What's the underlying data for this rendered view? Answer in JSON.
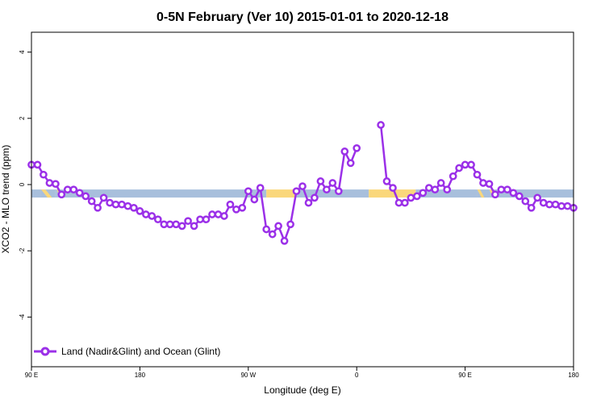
{
  "chart_data": {
    "type": "line",
    "title": "0-5N February (Ver 10)   2015-01-01 to 2020-12-18",
    "xlabel": "Longitude (deg E)",
    "ylabel": "XCO2 - MLO trend (ppm)",
    "xlim": [
      90,
      540
    ],
    "ylim": [
      -5.5,
      4.6
    ],
    "xticks": [
      {
        "value": 90,
        "label": "90 E"
      },
      {
        "value": 180,
        "label": "180"
      },
      {
        "value": 270,
        "label": "90 W"
      },
      {
        "value": 360,
        "label": "0"
      },
      {
        "value": 450,
        "label": "90 E"
      },
      {
        "value": 540,
        "label": "180"
      }
    ],
    "yticks": [
      {
        "value": 4,
        "label": "4"
      },
      {
        "value": 2,
        "label": "2"
      },
      {
        "value": 0,
        "label": "0"
      },
      {
        "value": -2,
        "label": "-2"
      },
      {
        "value": -4,
        "label": "-4"
      }
    ],
    "grid": false,
    "legend_position": "bottom-left",
    "surface_bar": {
      "y": -0.27,
      "segments": [
        {
          "type": "ocean",
          "start": 90,
          "end": 98
        },
        {
          "type": "mixed",
          "start": 98,
          "end": 110
        },
        {
          "type": "ocean",
          "start": 110,
          "end": 111
        },
        {
          "type": "mixed",
          "start": 111,
          "end": 117
        },
        {
          "type": "ocean",
          "start": 117,
          "end": 285
        },
        {
          "type": "land",
          "start": 285,
          "end": 310
        },
        {
          "type": "ocean",
          "start": 310,
          "end": 370
        },
        {
          "type": "land",
          "start": 370,
          "end": 409
        },
        {
          "type": "ocean",
          "start": 409,
          "end": 460
        },
        {
          "type": "mixed",
          "start": 460,
          "end": 468
        },
        {
          "type": "ocean",
          "start": 468,
          "end": 470
        },
        {
          "type": "mixed",
          "start": 470,
          "end": 477
        },
        {
          "type": "ocean",
          "start": 477,
          "end": 540
        }
      ],
      "colors": {
        "ocean": "#a8bfdc",
        "land": "#fad77b"
      }
    },
    "series": [
      {
        "name": "Land (Nadir&Glint) and Ocean (Glint)",
        "color": "#9b30e8",
        "points": [
          [
            90,
            0.6
          ],
          [
            95,
            0.6
          ],
          [
            100,
            0.3
          ],
          [
            105,
            0.05
          ],
          [
            110,
            0.02
          ],
          [
            115,
            -0.3
          ],
          [
            120,
            -0.15
          ],
          [
            125,
            -0.15
          ],
          [
            130,
            -0.25
          ],
          [
            135,
            -0.35
          ],
          [
            140,
            -0.5
          ],
          [
            145,
            -0.7
          ],
          [
            150,
            -0.4
          ],
          [
            155,
            -0.55
          ],
          [
            160,
            -0.6
          ],
          [
            165,
            -0.6
          ],
          [
            170,
            -0.65
          ],
          [
            175,
            -0.7
          ],
          [
            180,
            -0.8
          ],
          [
            185,
            -0.9
          ],
          [
            190,
            -0.95
          ],
          [
            195,
            -1.05
          ],
          [
            200,
            -1.2
          ],
          [
            205,
            -1.2
          ],
          [
            210,
            -1.2
          ],
          [
            215,
            -1.25
          ],
          [
            220,
            -1.1
          ],
          [
            225,
            -1.25
          ],
          [
            230,
            -1.05
          ],
          [
            235,
            -1.05
          ],
          [
            240,
            -0.9
          ],
          [
            245,
            -0.9
          ],
          [
            250,
            -0.95
          ],
          [
            255,
            -0.6
          ],
          [
            260,
            -0.75
          ],
          [
            265,
            -0.7
          ],
          [
            270,
            -0.2
          ],
          [
            275,
            -0.45
          ],
          [
            280,
            -0.1
          ],
          [
            285,
            -1.35
          ],
          [
            290,
            -1.5
          ],
          [
            295,
            -1.25
          ],
          [
            300,
            -1.7
          ],
          [
            305,
            -1.2
          ],
          [
            310,
            -0.2
          ],
          [
            315,
            -0.05
          ],
          [
            320,
            -0.55
          ],
          [
            325,
            -0.4
          ],
          [
            330,
            0.1
          ],
          [
            335,
            -0.15
          ],
          [
            340,
            0.05
          ],
          [
            345,
            -0.2
          ],
          [
            350,
            1.0
          ],
          [
            355,
            0.65
          ],
          [
            360,
            1.1
          ],
          null,
          [
            380,
            1.8
          ],
          [
            385,
            0.1
          ],
          [
            390,
            -0.1
          ],
          [
            395,
            -0.55
          ],
          [
            400,
            -0.55
          ],
          [
            405,
            -0.4
          ],
          [
            410,
            -0.35
          ],
          [
            415,
            -0.25
          ],
          [
            420,
            -0.1
          ],
          [
            425,
            -0.15
          ],
          [
            430,
            0.05
          ],
          [
            435,
            -0.15
          ],
          [
            440,
            0.25
          ],
          [
            445,
            0.5
          ],
          [
            450,
            0.6
          ],
          [
            455,
            0.6
          ],
          [
            460,
            0.3
          ],
          [
            465,
            0.05
          ],
          [
            470,
            0.02
          ],
          [
            475,
            -0.3
          ],
          [
            480,
            -0.15
          ],
          [
            485,
            -0.15
          ],
          [
            490,
            -0.25
          ],
          [
            495,
            -0.35
          ],
          [
            500,
            -0.5
          ],
          [
            505,
            -0.7
          ],
          [
            510,
            -0.4
          ],
          [
            515,
            -0.55
          ],
          [
            520,
            -0.6
          ],
          [
            525,
            -0.6
          ],
          [
            530,
            -0.65
          ],
          [
            535,
            -0.65
          ],
          [
            540,
            -0.7
          ]
        ]
      }
    ]
  }
}
